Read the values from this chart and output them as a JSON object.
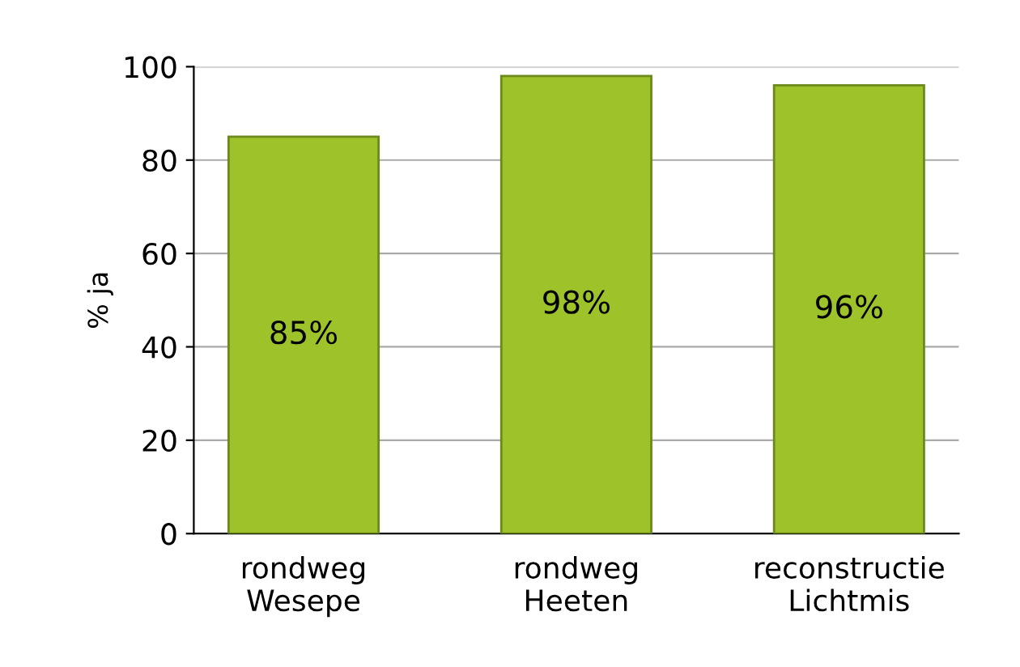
{
  "chart_data": {
    "type": "bar",
    "ylabel": "% ja",
    "categories": [
      "rondweg\nWesepe",
      "rondweg\nHeeten",
      "reconstructie\nLichtmis"
    ],
    "values": [
      85,
      98,
      96
    ],
    "color": "#9dc22a",
    "value_labels": [
      "85%",
      "98%",
      "96%"
    ],
    "ylim": [
      0,
      100
    ],
    "yticks": [
      0,
      20,
      40,
      60,
      80,
      100
    ],
    "grid": "y"
  }
}
